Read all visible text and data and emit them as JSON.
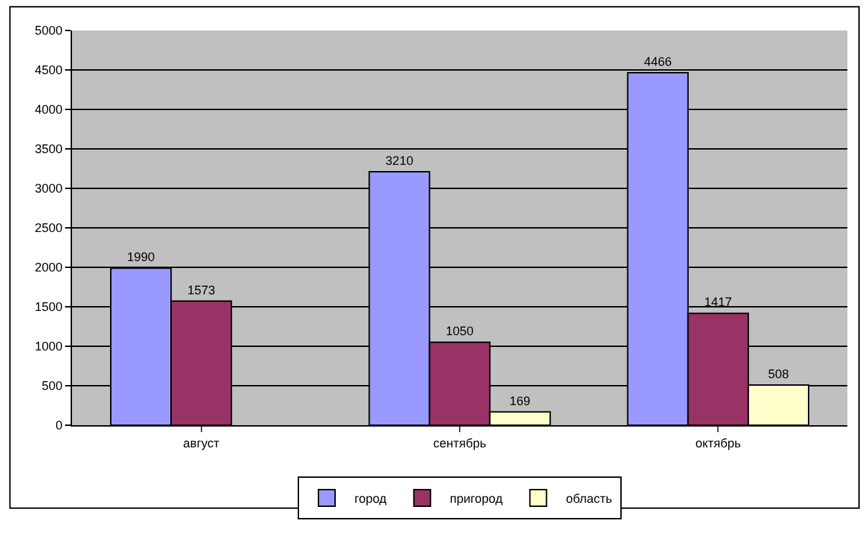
{
  "chart_data": {
    "type": "bar",
    "categories": [
      "август",
      "сентябрь",
      "октябрь"
    ],
    "series": [
      {
        "name": "город",
        "color": "#9999ff",
        "values": [
          1990,
          3210,
          4466
        ]
      },
      {
        "name": "пригород",
        "color": "#993366",
        "values": [
          1573,
          1050,
          1417
        ]
      },
      {
        "name": "область",
        "color": "#ffffcc",
        "values": [
          null,
          169,
          508
        ]
      }
    ],
    "ylim": [
      0,
      5000
    ],
    "yticks": [
      0,
      500,
      1000,
      1500,
      2000,
      2500,
      3000,
      3500,
      4000,
      4500,
      5000
    ],
    "grid": "y",
    "legend": "bottom",
    "data_labels": true
  }
}
